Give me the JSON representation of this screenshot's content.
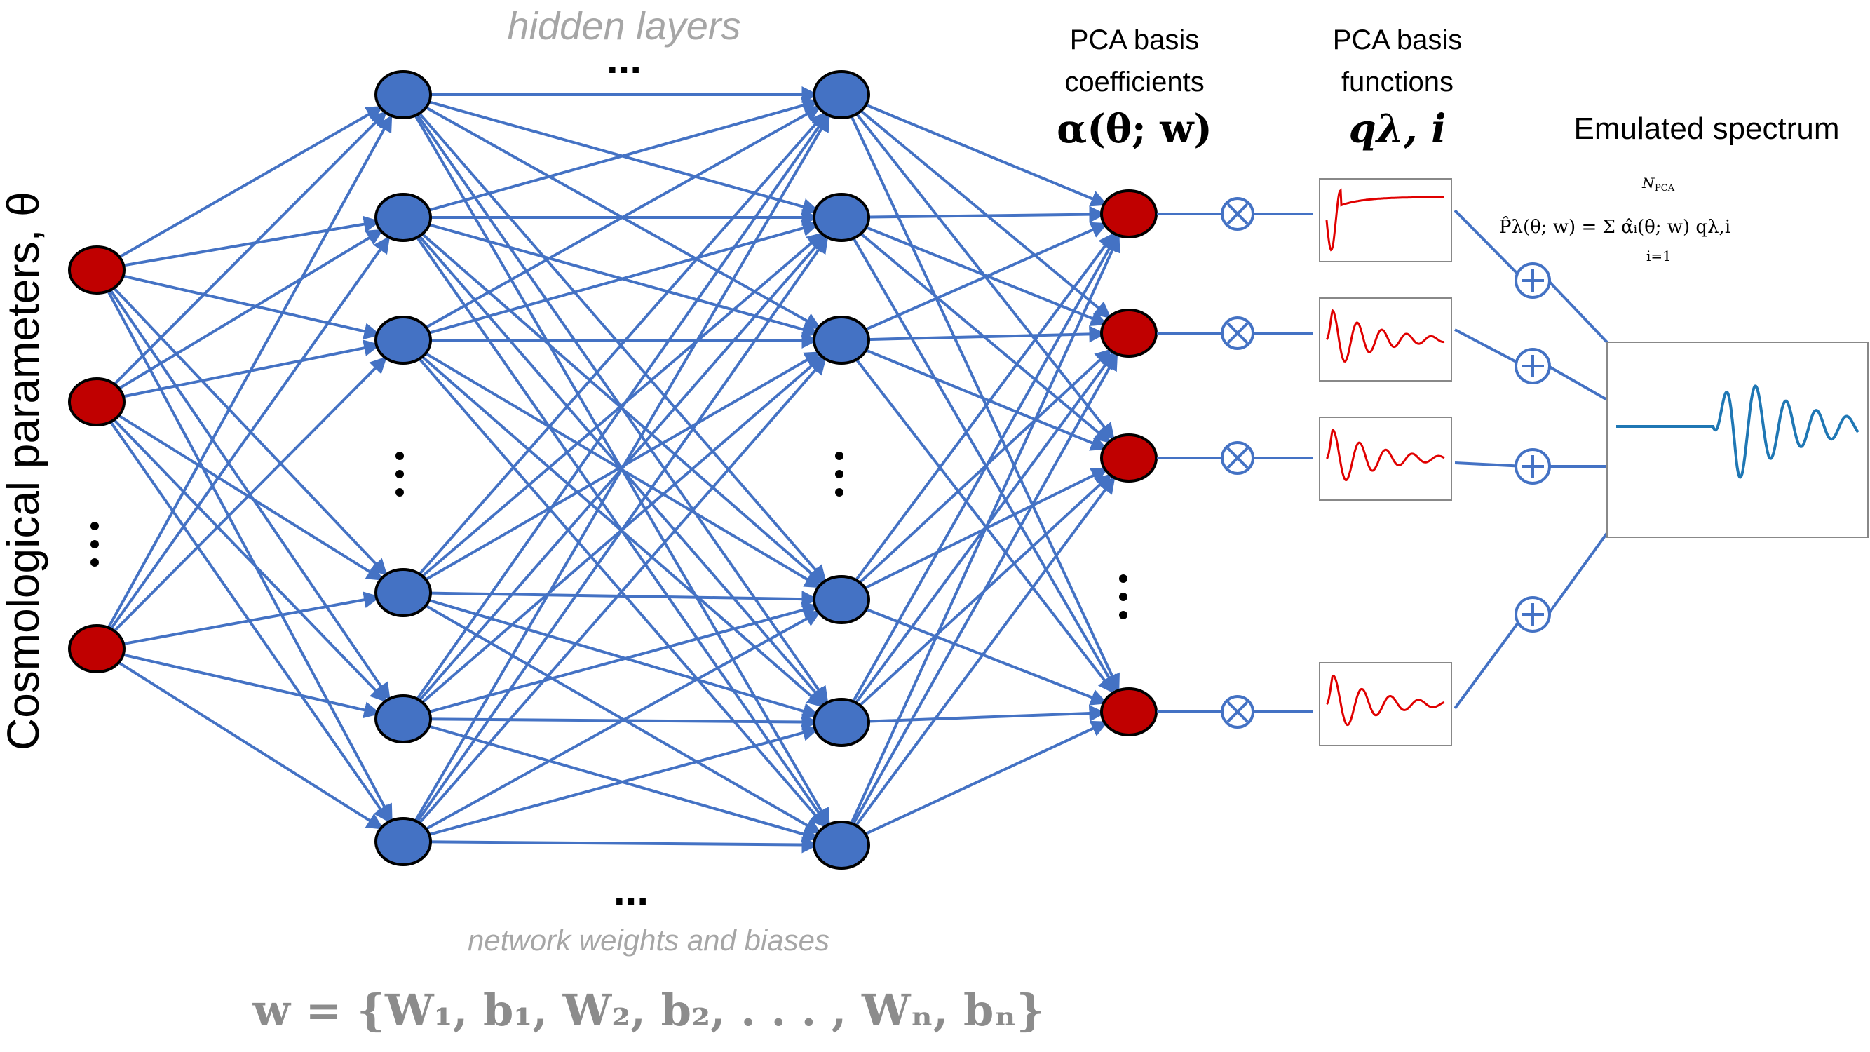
{
  "labels": {
    "input_axis": "Cosmological parameters, θ",
    "hidden_layers": "hidden layers",
    "network_weights": "network weights and biases",
    "weights_formula": "w = {W₁, b₁, W₂, b₂, . . . , Wₙ, bₙ}",
    "pca_coeff_line1": "PCA basis",
    "pca_coeff_line2": "coefficients",
    "pca_coeff_symbol": "α(θ; w)",
    "pca_func_line1": "PCA basis",
    "pca_func_line2": "functions",
    "pca_func_symbol": "qλ, i",
    "emulated_title": "Emulated spectrum",
    "emulated_formula": "P̂λ(θ; w) = Σ α̂ᵢ(θ; w) qλ,i",
    "sum_upper": "N",
    "sum_upper_sub": "PCA",
    "sum_lower": "i=1",
    "ellipsis": "..."
  },
  "glyphs": {
    "multiply": "⊗",
    "add": "⊕",
    "vertical_dots": "⋮"
  },
  "colors": {
    "edge": "#4472c4",
    "node_blue": "#4472c4",
    "node_red": "#c00000",
    "node_stroke": "#000000",
    "gray_text": "#a6a6a6",
    "basis_curve": "#e00000",
    "spectrum_curve": "#1f77b4"
  }
}
